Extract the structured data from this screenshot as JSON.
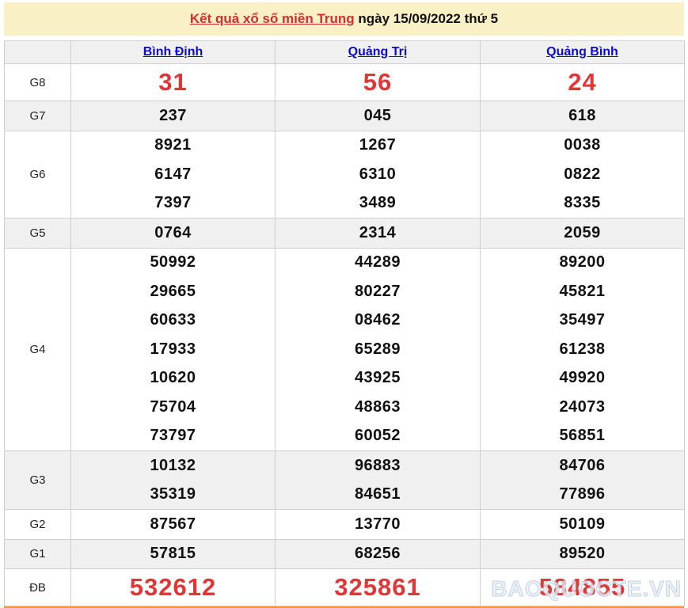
{
  "header": {
    "title_link": "Kết quả xổ số miền Trung",
    "title_date": " ngày 15/09/2022 thứ 5"
  },
  "table": {
    "columns": [
      "Bình Định",
      "Quảng Trị",
      "Quảng Bình"
    ],
    "rows": [
      {
        "label": "G8",
        "emphasis": true,
        "values": [
          [
            "31"
          ],
          [
            "56"
          ],
          [
            "24"
          ]
        ]
      },
      {
        "label": "G7",
        "values": [
          [
            "237"
          ],
          [
            "045"
          ],
          [
            "618"
          ]
        ]
      },
      {
        "label": "G6",
        "values": [
          [
            "8921",
            "6147",
            "7397"
          ],
          [
            "1267",
            "6310",
            "3489"
          ],
          [
            "0038",
            "0822",
            "8335"
          ]
        ]
      },
      {
        "label": "G5",
        "values": [
          [
            "0764"
          ],
          [
            "2314"
          ],
          [
            "2059"
          ]
        ]
      },
      {
        "label": "G4",
        "values": [
          [
            "50992",
            "29665",
            "60633",
            "17933",
            "10620",
            "75704",
            "73797"
          ],
          [
            "44289",
            "80227",
            "08462",
            "65289",
            "43925",
            "48863",
            "60052"
          ],
          [
            "89200",
            "45821",
            "35497",
            "61238",
            "49920",
            "24073",
            "56851"
          ]
        ]
      },
      {
        "label": "G3",
        "values": [
          [
            "10132",
            "35319"
          ],
          [
            "96883",
            "84651"
          ],
          [
            "84706",
            "77896"
          ]
        ]
      },
      {
        "label": "G2",
        "values": [
          [
            "87567"
          ],
          [
            "13770"
          ],
          [
            "50109"
          ]
        ]
      },
      {
        "label": "G1",
        "values": [
          [
            "57815"
          ],
          [
            "68256"
          ],
          [
            "89520"
          ]
        ]
      },
      {
        "label": "ĐB",
        "emphasis": true,
        "values": [
          [
            "532612"
          ],
          [
            "325861"
          ],
          [
            "584855"
          ]
        ]
      }
    ]
  },
  "watermark": "BAOQUOCTE.VN",
  "colors": {
    "title_bg": "#faf0c6",
    "link_red": "#d22e2e",
    "number_red": "#e23636",
    "link_blue": "#0b0bd0",
    "row_shade": "#f0f0f0",
    "border": "#cfcfcf",
    "bottom_bar": "#f0953e"
  }
}
